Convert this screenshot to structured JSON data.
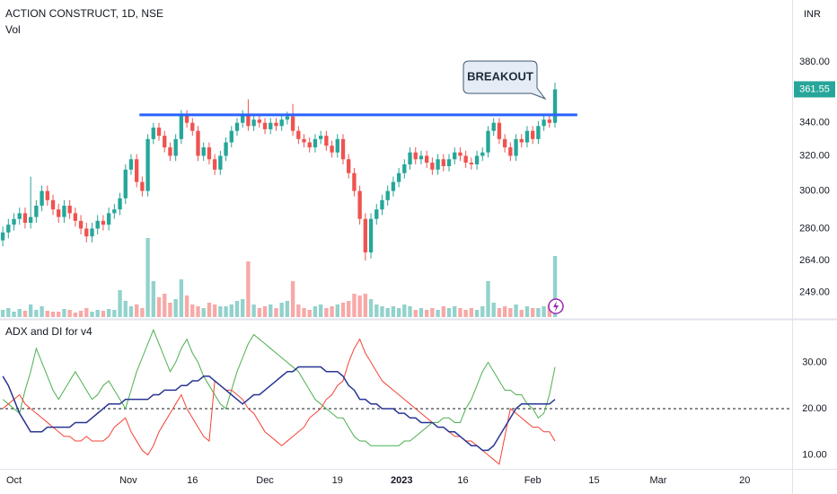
{
  "header": {
    "symbol": "ACTION CONSTRUCT, 1D, NSE",
    "volume_label": "Vol",
    "currency": "INR"
  },
  "chart_data": [
    {
      "type": "candlestick",
      "open": [
        274,
        278,
        282,
        285,
        288,
        283,
        286,
        292,
        300,
        295,
        290,
        286,
        292,
        288,
        284,
        280,
        276,
        280,
        284,
        282,
        288,
        290,
        296,
        312,
        318,
        305,
        300,
        330,
        337,
        332,
        325,
        320,
        330,
        345,
        340,
        335,
        320,
        325,
        318,
        312,
        320,
        328,
        335,
        340,
        345,
        338,
        342,
        340,
        336,
        340,
        338,
        342,
        344,
        335,
        330,
        328,
        325,
        330,
        332,
        326,
        322,
        330,
        318,
        310,
        300,
        285,
        268,
        285,
        290,
        295,
        300,
        305,
        310,
        315,
        322,
        318,
        320,
        316,
        312,
        318,
        314,
        318,
        322,
        320,
        316,
        315,
        320,
        322,
        335,
        340,
        330,
        325,
        320,
        330,
        328,
        335,
        330,
        338,
        342,
        340
      ],
      "high": [
        281,
        285,
        288,
        291,
        291,
        308,
        295,
        303,
        303,
        298,
        293,
        295,
        295,
        291,
        287,
        283,
        283,
        287,
        287,
        291,
        293,
        299,
        315,
        321,
        321,
        308,
        333,
        340,
        340,
        335,
        328,
        333,
        348,
        348,
        343,
        338,
        328,
        328,
        321,
        323,
        331,
        338,
        343,
        348,
        355,
        345,
        345,
        343,
        343,
        343,
        345,
        347,
        352,
        338,
        333,
        331,
        333,
        335,
        335,
        329,
        333,
        333,
        321,
        313,
        303,
        288,
        288,
        293,
        298,
        303,
        308,
        313,
        318,
        325,
        325,
        323,
        323,
        319,
        321,
        321,
        321,
        325,
        325,
        323,
        319,
        323,
        325,
        338,
        343,
        343,
        333,
        328,
        333,
        333,
        338,
        338,
        341,
        345,
        345,
        366
      ],
      "low": [
        271,
        275,
        279,
        282,
        280,
        280,
        283,
        289,
        292,
        287,
        283,
        283,
        285,
        281,
        277,
        273,
        273,
        277,
        279,
        279,
        285,
        287,
        293,
        309,
        302,
        297,
        297,
        327,
        329,
        322,
        317,
        317,
        327,
        337,
        332,
        317,
        317,
        315,
        309,
        309,
        317,
        325,
        332,
        337,
        335,
        335,
        337,
        333,
        333,
        335,
        335,
        339,
        332,
        327,
        325,
        322,
        322,
        327,
        323,
        319,
        319,
        315,
        307,
        297,
        282,
        264,
        265,
        282,
        287,
        292,
        297,
        302,
        307,
        312,
        315,
        315,
        313,
        309,
        309,
        311,
        311,
        315,
        317,
        313,
        312,
        312,
        317,
        319,
        332,
        327,
        322,
        317,
        317,
        325,
        325,
        327,
        327,
        335,
        337,
        337
      ],
      "close": [
        278,
        282,
        285,
        288,
        283,
        286,
        292,
        300,
        295,
        290,
        286,
        292,
        288,
        284,
        280,
        276,
        280,
        284,
        282,
        288,
        290,
        296,
        312,
        318,
        305,
        300,
        330,
        337,
        332,
        325,
        320,
        330,
        345,
        340,
        335,
        320,
        325,
        318,
        312,
        320,
        328,
        335,
        340,
        345,
        338,
        342,
        340,
        336,
        340,
        338,
        342,
        344,
        335,
        330,
        328,
        325,
        330,
        332,
        326,
        322,
        330,
        318,
        310,
        300,
        285,
        268,
        285,
        290,
        295,
        300,
        305,
        310,
        315,
        322,
        318,
        320,
        316,
        312,
        318,
        314,
        318,
        322,
        320,
        316,
        315,
        320,
        322,
        335,
        340,
        330,
        325,
        320,
        330,
        328,
        335,
        330,
        338,
        342,
        340,
        361.55
      ],
      "volume": [
        8,
        10,
        6,
        9,
        7,
        14,
        8,
        12,
        7,
        6,
        6,
        9,
        8,
        5,
        7,
        10,
        6,
        8,
        7,
        9,
        8,
        30,
        18,
        12,
        14,
        10,
        88,
        40,
        22,
        26,
        16,
        20,
        42,
        24,
        14,
        12,
        10,
        16,
        14,
        12,
        12,
        14,
        18,
        20,
        62,
        14,
        10,
        12,
        14,
        10,
        16,
        18,
        40,
        14,
        10,
        8,
        12,
        14,
        10,
        12,
        14,
        16,
        18,
        26,
        24,
        26,
        20,
        14,
        12,
        10,
        12,
        10,
        14,
        12,
        8,
        10,
        8,
        10,
        8,
        12,
        10,
        12,
        10,
        8,
        10,
        8,
        12,
        40,
        16,
        10,
        12,
        10,
        14,
        8,
        12,
        10,
        10,
        12,
        14,
        68
      ],
      "up_color": "#26a69a",
      "down_color": "#ef5350",
      "ylim": [
        238,
        426
      ],
      "log_scale": true,
      "yticks": [
        {
          "value": 380,
          "label": "380.00"
        },
        {
          "value": 340,
          "label": "340.00"
        },
        {
          "value": 320,
          "label": "320.00"
        },
        {
          "value": 300,
          "label": "300.00"
        },
        {
          "value": 280,
          "label": "280.00"
        },
        {
          "value": 264,
          "label": "264.00"
        },
        {
          "value": 249,
          "label": "249.00"
        }
      ],
      "xlim": [
        -0.5,
        141.5
      ],
      "xticks": [
        {
          "value": 2,
          "label": "Oct"
        },
        {
          "value": 22.5,
          "label": "Nov"
        },
        {
          "value": 34,
          "label": "16"
        },
        {
          "value": 47,
          "label": "Dec"
        },
        {
          "value": 60,
          "label": "19"
        },
        {
          "value": 71.5,
          "label": "2023"
        },
        {
          "value": 82.5,
          "label": "16"
        },
        {
          "value": 95,
          "label": "Feb"
        },
        {
          "value": 106,
          "label": "15"
        },
        {
          "value": 117.5,
          "label": "Mar"
        },
        {
          "value": 133,
          "label": "20"
        }
      ],
      "annotations": [
        {
          "text": "BREAKOUT"
        }
      ],
      "levels": [
        {
          "value": 345,
          "color": "#2962ff",
          "from": 24.5,
          "to": 103
        }
      ]
    },
    {
      "type": "line",
      "title": "ADX and DI for v4",
      "series": [
        {
          "color": "#4caf50",
          "values": [
            22,
            21,
            20,
            19,
            24,
            28,
            33,
            30,
            27,
            24,
            22,
            24,
            26,
            28,
            26,
            24,
            22,
            23,
            25,
            26,
            24,
            22,
            20,
            24,
            28,
            31,
            34,
            37,
            34,
            31,
            28,
            30,
            33,
            35,
            32,
            30,
            27,
            25,
            23,
            21,
            20,
            24,
            28,
            31,
            34,
            36,
            35,
            34,
            33,
            32,
            31,
            30,
            29,
            28,
            26,
            24,
            22,
            21,
            20,
            19,
            18,
            18,
            16,
            14,
            13,
            13,
            12,
            12,
            12,
            12,
            12,
            12,
            13,
            13,
            14,
            15,
            16,
            17,
            17,
            18,
            18,
            17,
            17,
            20,
            22,
            25,
            28,
            30,
            28,
            26,
            24,
            24,
            23,
            23,
            21,
            20,
            18,
            19,
            23,
            29
          ]
        },
        {
          "color": "#f44336",
          "values": [
            20,
            21,
            22,
            23,
            21,
            20,
            19,
            18,
            17,
            16,
            15,
            14,
            14,
            13,
            13,
            14,
            13,
            13,
            13,
            14,
            16,
            17,
            18,
            15,
            13,
            11,
            10,
            12,
            15,
            17,
            19,
            21,
            23,
            20,
            18,
            16,
            14,
            13,
            26,
            25,
            24,
            24,
            23,
            22,
            20,
            19,
            17,
            15,
            14,
            13,
            12,
            13,
            14,
            15,
            16,
            18,
            19,
            20,
            22,
            23,
            25,
            26,
            30,
            33,
            35,
            32,
            30,
            28,
            26,
            25,
            24,
            23,
            22,
            21,
            20,
            19,
            18,
            17,
            16,
            16,
            15,
            14,
            14,
            13,
            13,
            12,
            11,
            10,
            9,
            8,
            14,
            20,
            19,
            18,
            17,
            16,
            16,
            15,
            15,
            13
          ]
        },
        {
          "color": "#283593",
          "values": [
            27,
            25,
            22,
            19,
            17,
            15,
            15,
            15,
            16,
            16,
            16,
            16,
            16,
            17,
            17,
            17,
            18,
            19,
            20,
            21,
            21,
            21,
            22,
            22,
            22,
            22,
            22,
            23,
            23,
            24,
            24,
            24,
            25,
            25,
            26,
            26,
            27,
            27,
            26,
            25,
            24,
            23,
            22,
            21,
            22,
            23,
            23,
            24,
            25,
            26,
            27,
            28,
            28,
            29,
            29,
            29,
            29,
            29,
            28,
            28,
            28,
            27,
            25,
            24,
            22,
            22,
            21,
            21,
            20,
            20,
            20,
            19,
            19,
            18,
            18,
            17,
            17,
            17,
            16,
            16,
            15,
            15,
            14,
            13,
            12,
            12,
            11,
            11,
            12,
            14,
            16,
            18,
            20,
            21,
            21,
            21,
            21,
            21,
            21,
            22
          ]
        }
      ],
      "ylim": [
        7,
        39
      ],
      "yticks": [
        {
          "value": 30,
          "label": "30.00"
        },
        {
          "value": 20,
          "label": "20.00"
        },
        {
          "value": 10,
          "label": "10.00"
        }
      ],
      "hline": 20
    }
  ]
}
